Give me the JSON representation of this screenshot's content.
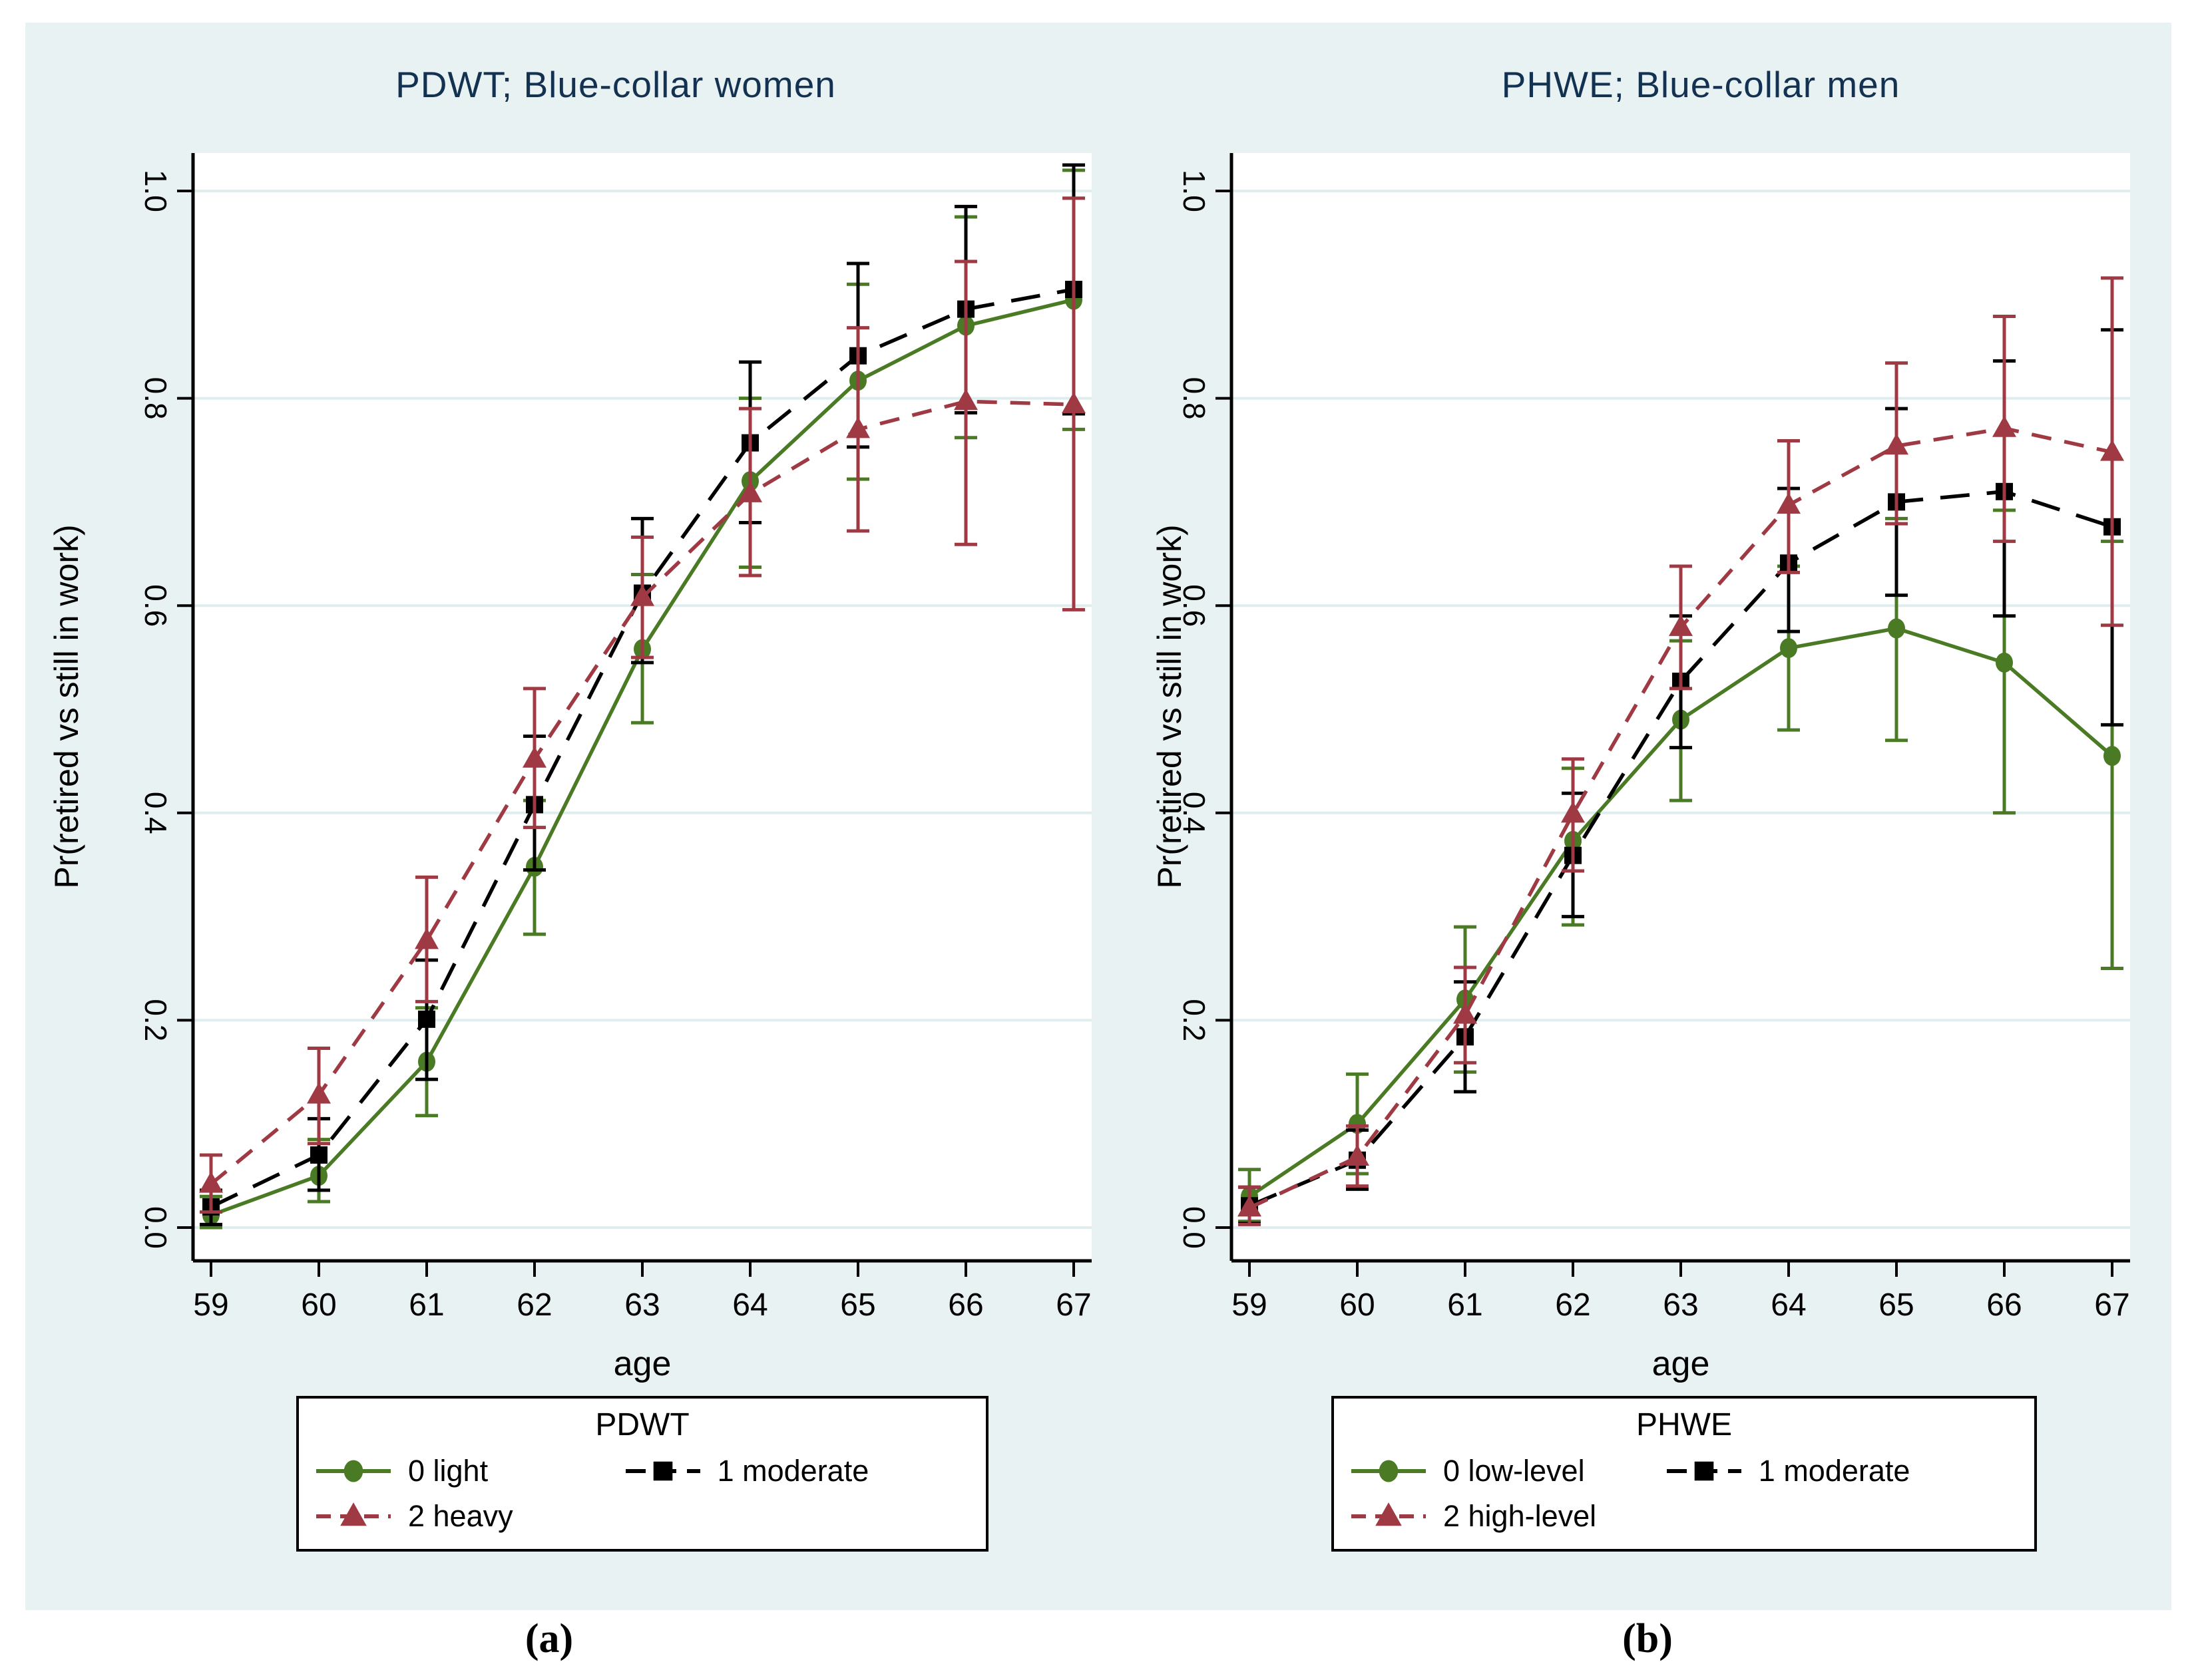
{
  "figure": {
    "sublabels": [
      "(a)",
      "(b)"
    ]
  },
  "colors": {
    "green": "#4a7b24",
    "black": "#000000",
    "maroon": "#9f3a44",
    "title_navy": "#133150",
    "grid": "#dfedef",
    "figure_bg": "#e9f2f3",
    "plot_bg": "#ffffff"
  },
  "chart_data": [
    {
      "id": "pdwt-blue-collar-women",
      "type": "line",
      "title": "PDWT; Blue-collar women",
      "xlabel": "age",
      "ylabel": "Pr(retired vs still in work)",
      "x": [
        59,
        60,
        61,
        62,
        63,
        64,
        65,
        66,
        67
      ],
      "x_tick_labels": [
        "59",
        "60",
        "61",
        "62",
        "63",
        "64",
        "65",
        "66",
        "67"
      ],
      "y_ticks": [
        0.0,
        0.2,
        0.4,
        0.6,
        0.8,
        1.0
      ],
      "y_tick_labels": [
        "0.0",
        "0.2",
        "0.4",
        "0.6",
        "0.8",
        "1.0"
      ],
      "ylim": [
        0,
        1
      ],
      "grid": true,
      "legend": {
        "title": "PDWT",
        "position": "below-center"
      },
      "series": [
        {
          "name": "0 light",
          "color_key": "green",
          "marker": "circle",
          "dash": "solid",
          "values": [
            0.012,
            0.05,
            0.16,
            0.348,
            0.558,
            0.72,
            0.817,
            0.87,
            0.895
          ],
          "ci_low": [
            0.0,
            0.025,
            0.108,
            0.283,
            0.487,
            0.637,
            0.722,
            0.762,
            0.77
          ],
          "ci_high": [
            0.03,
            0.085,
            0.212,
            0.412,
            0.63,
            0.8,
            0.91,
            0.975,
            1.02
          ]
        },
        {
          "name": "1 moderate",
          "color_key": "black",
          "marker": "square",
          "dash": "longdash",
          "values": [
            0.02,
            0.07,
            0.201,
            0.408,
            0.612,
            0.757,
            0.841,
            0.886,
            0.905
          ],
          "ci_low": [
            0.003,
            0.036,
            0.143,
            0.345,
            0.545,
            0.68,
            0.753,
            0.786,
            0.785
          ],
          "ci_high": [
            0.036,
            0.105,
            0.258,
            0.474,
            0.684,
            0.835,
            0.93,
            0.985,
            1.025
          ]
        },
        {
          "name": "2 heavy",
          "color_key": "maroon",
          "marker": "triangle",
          "dash": "dash",
          "values": [
            0.042,
            0.128,
            0.277,
            0.452,
            0.608,
            0.708,
            0.77,
            0.797,
            0.794
          ],
          "ci_low": [
            0.015,
            0.081,
            0.218,
            0.386,
            0.55,
            0.629,
            0.672,
            0.659,
            0.596
          ],
          "ci_high": [
            0.07,
            0.173,
            0.338,
            0.52,
            0.666,
            0.79,
            0.868,
            0.932,
            0.993
          ]
        }
      ]
    },
    {
      "id": "phwe-blue-collar-men",
      "type": "line",
      "title": "PHWE; Blue-collar men",
      "xlabel": "age",
      "ylabel": "Pr(retired vs still in work)",
      "x": [
        59,
        60,
        61,
        62,
        63,
        64,
        65,
        66,
        67
      ],
      "x_tick_labels": [
        "59",
        "60",
        "61",
        "62",
        "63",
        "64",
        "65",
        "66",
        "67"
      ],
      "y_ticks": [
        0.0,
        0.2,
        0.4,
        0.6,
        0.8,
        1.0
      ],
      "y_tick_labels": [
        "0.0",
        "0.2",
        "0.4",
        "0.6",
        "0.8",
        "1.0"
      ],
      "ylim": [
        0,
        1
      ],
      "grid": true,
      "legend": {
        "title": "PHWE",
        "position": "below-center"
      },
      "series": [
        {
          "name": "0 low-level",
          "color_key": "green",
          "marker": "circle",
          "dash": "solid",
          "values": [
            0.03,
            0.1,
            0.22,
            0.373,
            0.49,
            0.559,
            0.578,
            0.545,
            0.455
          ],
          "ci_low": [
            0.006,
            0.052,
            0.15,
            0.292,
            0.412,
            0.48,
            0.47,
            0.4,
            0.25
          ],
          "ci_high": [
            0.056,
            0.148,
            0.29,
            0.443,
            0.566,
            0.638,
            0.684,
            0.692,
            0.662
          ]
        },
        {
          "name": "1 moderate",
          "color_key": "black",
          "marker": "square",
          "dash": "longdash",
          "values": [
            0.021,
            0.065,
            0.184,
            0.359,
            0.527,
            0.641,
            0.7,
            0.71,
            0.676
          ],
          "ci_low": [
            0.004,
            0.037,
            0.131,
            0.3,
            0.463,
            0.575,
            0.61,
            0.59,
            0.485
          ],
          "ci_high": [
            0.039,
            0.094,
            0.237,
            0.419,
            0.59,
            0.713,
            0.79,
            0.836,
            0.866
          ]
        },
        {
          "name": "2 high-level",
          "color_key": "maroon",
          "marker": "triangle",
          "dash": "dash",
          "values": [
            0.019,
            0.068,
            0.205,
            0.399,
            0.579,
            0.697,
            0.754,
            0.771,
            0.748
          ],
          "ci_low": [
            0.003,
            0.04,
            0.159,
            0.344,
            0.52,
            0.632,
            0.679,
            0.662,
            0.581
          ],
          "ci_high": [
            0.039,
            0.098,
            0.251,
            0.452,
            0.638,
            0.759,
            0.834,
            0.879,
            0.916
          ]
        }
      ]
    }
  ]
}
